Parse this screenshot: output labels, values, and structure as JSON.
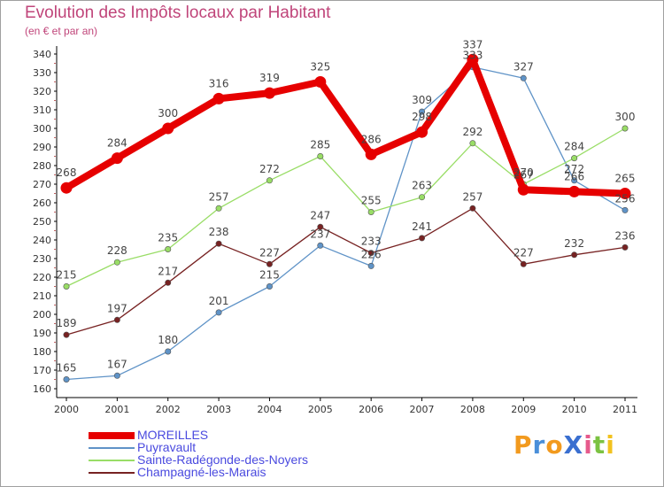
{
  "chart_data": {
    "type": "line",
    "title": "Evolution des Impôts locaux par Habitant",
    "subtitle": "(en € et par an)",
    "categories": [
      "2000",
      "2001",
      "2002",
      "2003",
      "2004",
      "2005",
      "2006",
      "2007",
      "2008",
      "2009",
      "2010",
      "2011"
    ],
    "ylim": [
      160,
      340
    ],
    "yticks": [
      160,
      170,
      180,
      190,
      200,
      210,
      220,
      230,
      240,
      250,
      260,
      270,
      280,
      290,
      300,
      310,
      320,
      330,
      340
    ],
    "series": [
      {
        "name": "MOREILLES",
        "color": "#e60000",
        "values": [
          268,
          284,
          300,
          316,
          319,
          325,
          286,
          298,
          337,
          267,
          266,
          265
        ],
        "labels": [
          "268",
          "284",
          "300",
          "316",
          "319",
          "325",
          "286",
          "298",
          "337",
          "267",
          "266",
          "265"
        ]
      },
      {
        "name": "Puyravault",
        "color": "#5f93c7",
        "values": [
          165,
          167,
          180,
          201,
          215,
          237,
          226,
          309,
          333,
          327,
          272,
          256
        ],
        "labels": [
          "165",
          "167",
          "180",
          "201",
          "215",
          "237",
          "226",
          "309",
          "333",
          "327",
          "272",
          "256"
        ]
      },
      {
        "name": "Sainte-Radégonde-des-Noyers",
        "color": "#99dd66",
        "values": [
          215,
          228,
          235,
          257,
          272,
          285,
          255,
          263,
          292,
          270,
          284,
          300
        ],
        "labels": [
          "215",
          "228",
          "235",
          "257",
          "272",
          "285",
          "255",
          "263",
          "292",
          "270",
          "284",
          "300"
        ]
      },
      {
        "name": "Champagné-les-Marais",
        "color": "#772222",
        "values": [
          189,
          197,
          217,
          238,
          227,
          247,
          233,
          241,
          257,
          227,
          232,
          236
        ],
        "labels": [
          "189",
          "197",
          "217",
          "238",
          "227",
          "247",
          "233",
          "241",
          "257",
          "227",
          "232",
          "236"
        ]
      }
    ],
    "legend_position": "bottom-left",
    "grid": false
  },
  "logo": {
    "text": "ProXiti"
  }
}
